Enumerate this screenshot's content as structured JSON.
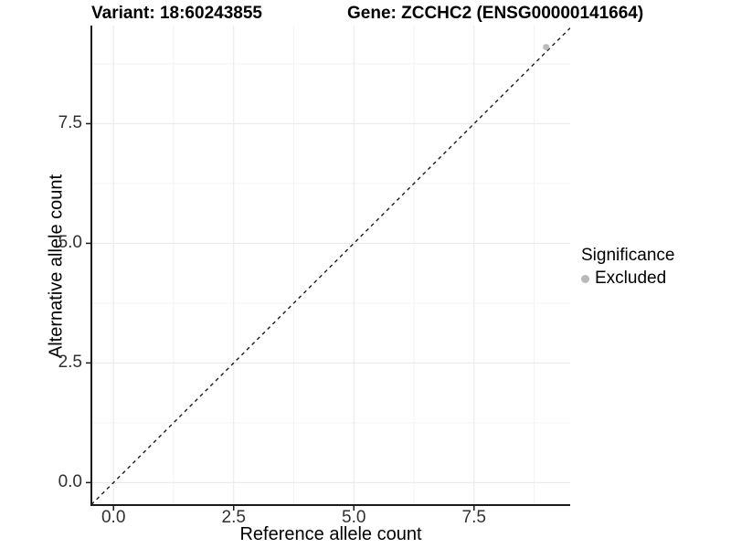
{
  "titles": {
    "variant": "Variant: 18:60243855",
    "gene": "Gene: ZCCHC2 (ENSG00000141664)"
  },
  "axes": {
    "x": {
      "label": "Reference allele count",
      "tick_labels": [
        "0.0",
        "2.5",
        "5.0",
        "7.5"
      ],
      "tick_values": [
        0,
        2.5,
        5,
        7.5
      ],
      "minor_tick_values": [
        1.25,
        3.75,
        6.25,
        8.75
      ],
      "range": [
        -0.46,
        9.5
      ]
    },
    "y": {
      "label": "Alternative allele count",
      "tick_labels": [
        "0.0",
        "2.5",
        "5.0",
        "7.5"
      ],
      "tick_values": [
        0,
        2.5,
        5,
        7.5
      ],
      "minor_tick_values": [
        1.25,
        3.75,
        6.25,
        8.75
      ],
      "range": [
        -0.47,
        9.55
      ]
    }
  },
  "legend": {
    "title": "Significance",
    "items": [
      {
        "label": "Excluded",
        "marker": "circle",
        "color": "#b9b9b9"
      }
    ]
  },
  "colors": {
    "background": "#ffffff",
    "axis_line": "#1a1a1a",
    "tick_mark": "#1a1a1a",
    "tick_label": "#303030",
    "grid_major": "#e8e8e8",
    "grid_minor": "#f3f3f3",
    "identity_line": "#1a1a1a",
    "point": "#bdbdbd"
  },
  "chart_data": {
    "type": "scatter",
    "title": "Variant: 18:60243855 | Gene: ZCCHC2 (ENSG00000141664)",
    "xlabel": "Reference allele count",
    "ylabel": "Alternative allele count",
    "xlim": [
      -0.46,
      9.5
    ],
    "ylim": [
      -0.47,
      9.55
    ],
    "x_ticks": [
      0,
      2.5,
      5,
      7.5
    ],
    "y_ticks": [
      0,
      2.5,
      5,
      7.5
    ],
    "x_minor_ticks": [
      1.25,
      3.75,
      6.25,
      8.75
    ],
    "y_minor_ticks": [
      1.25,
      3.75,
      6.25,
      8.75
    ],
    "grid": true,
    "legend_position": "right",
    "series": [
      {
        "name": "Excluded",
        "color": "#bdbdbd",
        "points": [
          [
            9.0,
            9.1
          ]
        ]
      }
    ],
    "reference_line": {
      "type": "identity y=x",
      "style": "dashed",
      "color": "#1a1a1a"
    }
  }
}
